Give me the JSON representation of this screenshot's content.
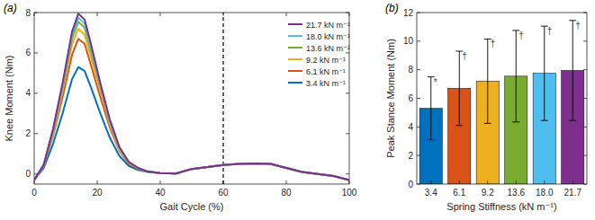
{
  "chart_data": [
    {
      "type": "line",
      "title": "(a)",
      "x_label": "Gait Cycle (%)",
      "y_label": "Knee Moment (Nm)",
      "x": [
        0,
        3,
        6,
        9,
        12,
        14,
        16,
        18,
        21,
        24,
        27,
        30,
        33,
        36,
        40,
        45,
        50,
        55,
        60,
        65,
        70,
        75,
        80,
        85,
        90,
        95,
        100
      ],
      "series": [
        {
          "name": "21.7 kN m⁻¹",
          "color": "#7e2f8e",
          "values": [
            -0.3,
            0.45,
            2.25,
            4.5,
            7.05,
            7.95,
            7.65,
            6.45,
            4.5,
            2.7,
            1.35,
            0.6,
            0.3,
            0.12,
            0.05,
            0.02,
            0.25,
            0.35,
            0.45,
            0.5,
            0.52,
            0.5,
            0.3,
            0.1,
            0.0,
            -0.1,
            -0.3
          ]
        },
        {
          "name": "18.0 kN m⁻¹",
          "color": "#4dbeee",
          "values": [
            -0.3,
            0.45,
            2.2,
            4.4,
            6.9,
            7.75,
            7.45,
            6.3,
            4.4,
            2.6,
            1.3,
            0.6,
            0.29,
            0.12,
            0.05,
            0.02,
            0.25,
            0.35,
            0.45,
            0.5,
            0.52,
            0.5,
            0.3,
            0.1,
            0.0,
            -0.1,
            -0.3
          ]
        },
        {
          "name": "13.6 kN m⁻¹",
          "color": "#77ac30",
          "values": [
            -0.3,
            0.4,
            2.1,
            4.3,
            6.7,
            7.55,
            7.25,
            6.1,
            4.3,
            2.55,
            1.3,
            0.55,
            0.28,
            0.12,
            0.05,
            0.02,
            0.25,
            0.35,
            0.45,
            0.5,
            0.52,
            0.5,
            0.3,
            0.1,
            0.0,
            -0.1,
            -0.3
          ]
        },
        {
          "name": "9.2 kN m⁻¹",
          "color": "#edb120",
          "values": [
            -0.3,
            0.4,
            2.0,
            4.1,
            6.4,
            7.2,
            6.9,
            5.8,
            4.1,
            2.45,
            1.2,
            0.55,
            0.27,
            0.12,
            0.05,
            0.02,
            0.25,
            0.35,
            0.45,
            0.5,
            0.52,
            0.5,
            0.3,
            0.1,
            0.0,
            -0.1,
            -0.3
          ]
        },
        {
          "name": "6.1 kN m⁻¹",
          "color": "#d95319",
          "values": [
            -0.3,
            0.4,
            1.9,
            3.8,
            5.9,
            6.7,
            6.45,
            5.4,
            3.8,
            2.3,
            1.15,
            0.5,
            0.25,
            0.12,
            0.05,
            0.02,
            0.25,
            0.35,
            0.45,
            0.5,
            0.52,
            0.5,
            0.3,
            0.1,
            0.0,
            -0.1,
            -0.3
          ]
        },
        {
          "name": "3.4 kN m⁻¹",
          "color": "#0072bd",
          "values": [
            -0.3,
            0.3,
            1.5,
            3.0,
            4.7,
            5.3,
            5.1,
            4.3,
            3.0,
            1.8,
            0.9,
            0.4,
            0.2,
            0.1,
            0.05,
            0.02,
            0.25,
            0.35,
            0.45,
            0.5,
            0.52,
            0.5,
            0.3,
            0.1,
            0.0,
            -0.1,
            -0.3
          ]
        }
      ],
      "reference_lines": [
        {
          "x": 60,
          "line_style": "dashed"
        }
      ],
      "xlim": [
        0,
        100
      ],
      "xticks": [
        0,
        20,
        40,
        60,
        80,
        100
      ],
      "ylim": [
        -0.5,
        8
      ],
      "yticks": [
        0,
        2,
        4,
        6,
        8
      ],
      "legend": "upper right",
      "grid": false
    },
    {
      "type": "bar",
      "title": "(b)",
      "x_label": "Spring Stiffness (kN m⁻¹)",
      "y_label": "Peak Stance Moment (Nm)",
      "categories": [
        "3.4",
        "6.1",
        "9.2",
        "13.6",
        "18.0",
        "21.7"
      ],
      "values": [
        5.3,
        6.7,
        7.2,
        7.55,
        7.75,
        7.95
      ],
      "errors": [
        2.2,
        2.6,
        2.95,
        3.2,
        3.3,
        3.5
      ],
      "colors": [
        "#0072bd",
        "#d95319",
        "#edb120",
        "#77ac30",
        "#4dbeee",
        "#7e2f8e"
      ],
      "annotations": [
        {
          "text": "*",
          "category": "3.4"
        },
        {
          "text": "†",
          "category": "6.1"
        },
        {
          "text": "†",
          "category": "9.2"
        },
        {
          "text": "†",
          "category": "13.6"
        },
        {
          "text": "†",
          "category": "18.0"
        },
        {
          "text": "†",
          "category": "21.7"
        }
      ],
      "ylim": [
        0,
        12
      ],
      "yticks": [
        0,
        2,
        4,
        6,
        8,
        10,
        12
      ],
      "grid": false
    }
  ]
}
